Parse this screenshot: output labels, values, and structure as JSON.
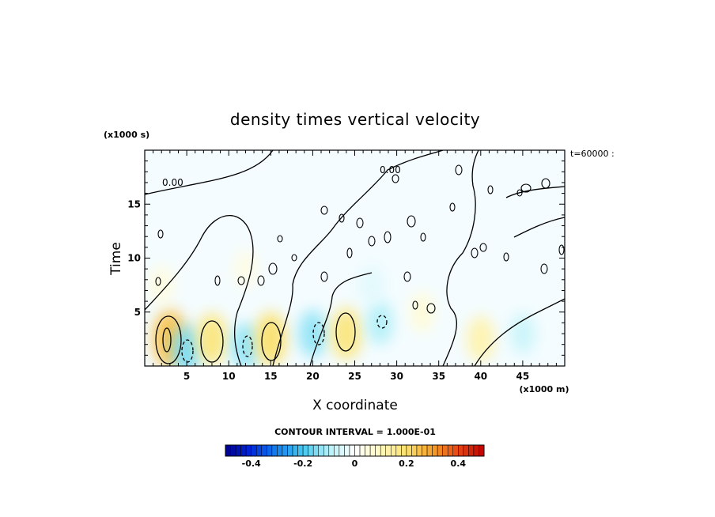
{
  "chart_data": {
    "type": "heatmap",
    "title": "density times vertical velocity",
    "xlabel": "X coordinate",
    "ylabel": "Time",
    "x_unit_label": "(x1000 m)",
    "y_unit_label": "(x1000 s)",
    "time_stamp": "t=60000 :",
    "contour_interval_label": "CONTOUR INTERVAL = 1.000E-01",
    "contour_zero_labels": [
      "0.00",
      "0.00"
    ],
    "xlim": [
      0,
      50
    ],
    "ylim": [
      0,
      20
    ],
    "x_ticks": [
      5,
      10,
      15,
      20,
      25,
      30,
      35,
      40,
      45
    ],
    "y_ticks": [
      5,
      10,
      15
    ],
    "colorbar": {
      "range": [
        -0.5,
        0.5
      ],
      "ticks": [
        -0.4,
        -0.2,
        0,
        0.2,
        0.4
      ],
      "tick_labels": [
        "-0.4",
        "-0.2",
        "0",
        "0.2",
        "0.4"
      ],
      "low_color": "#00008c",
      "high_color": "#c00000"
    },
    "features": [
      {
        "x": 3,
        "y": 2.5,
        "value": 0.25
      },
      {
        "x": 5,
        "y": 1.5,
        "value": -0.15
      },
      {
        "x": 8,
        "y": 2.5,
        "value": 0.18
      },
      {
        "x": 12,
        "y": 1.8,
        "value": -0.13
      },
      {
        "x": 15,
        "y": 2.5,
        "value": 0.2
      },
      {
        "x": 20,
        "y": 3.0,
        "value": -0.13
      },
      {
        "x": 24,
        "y": 3.0,
        "value": 0.18
      },
      {
        "x": 28,
        "y": 4.0,
        "value": -0.1
      },
      {
        "x": 33,
        "y": 5.0,
        "value": 0.06
      },
      {
        "x": 40,
        "y": 2.5,
        "value": 0.12
      },
      {
        "x": 45,
        "y": 3.0,
        "value": -0.07
      },
      {
        "x": 2,
        "y": 7.5,
        "value": 0.05
      },
      {
        "x": 12,
        "y": 9.0,
        "value": 0.04
      },
      {
        "x": 27,
        "y": 7.5,
        "value": -0.04
      }
    ]
  }
}
